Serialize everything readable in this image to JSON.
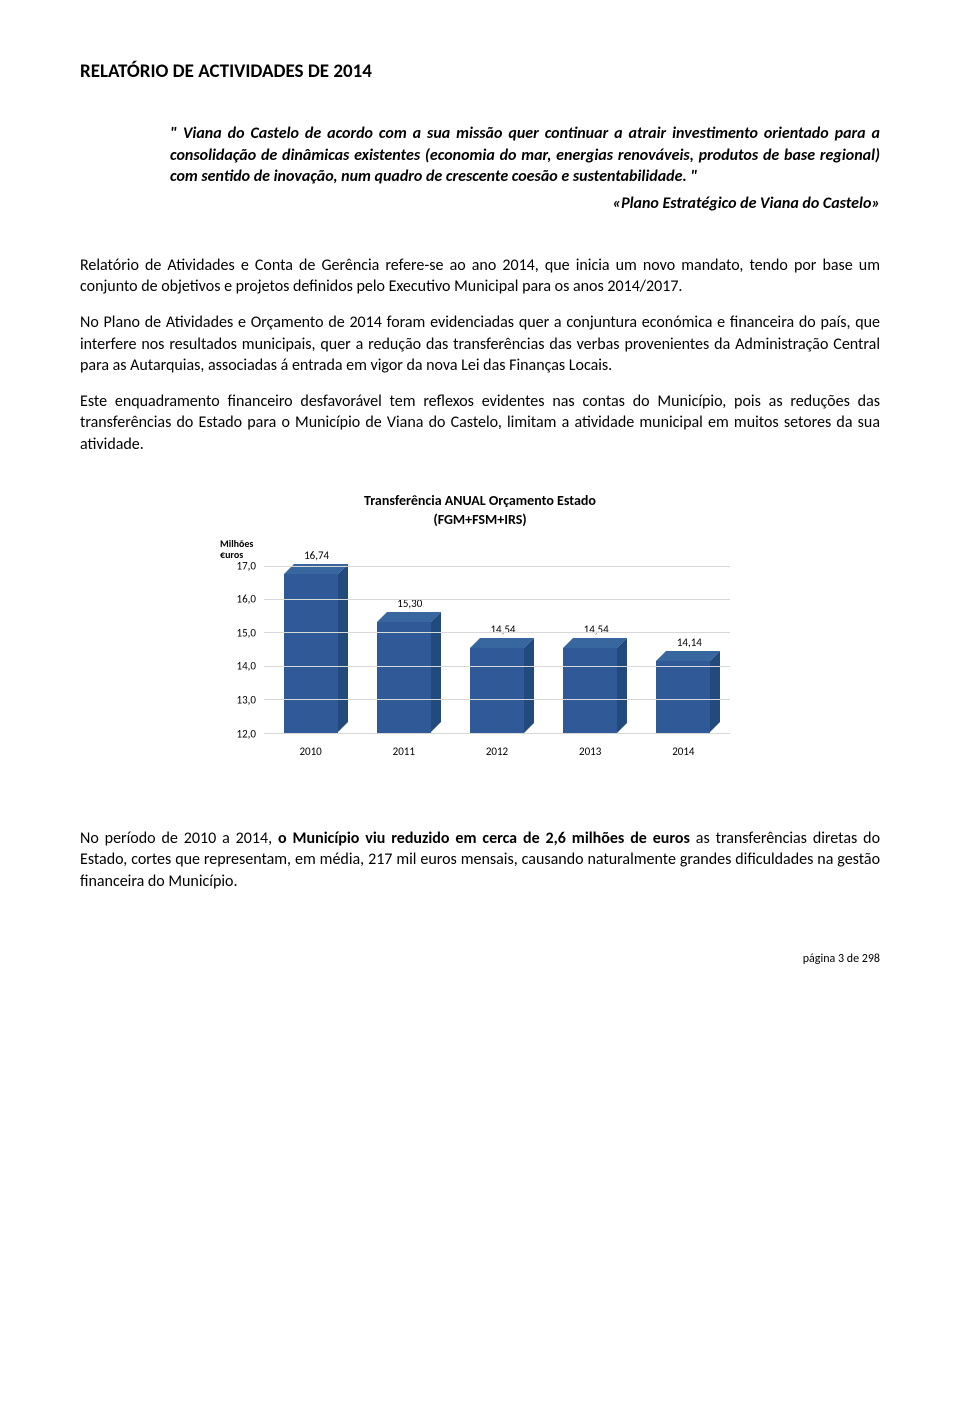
{
  "title": "RELATÓRIO DE ACTIVIDADES DE 2014",
  "quote": "\" Viana do Castelo de acordo com a sua missão quer continuar a atrair investimento orientado para a consolidação de dinâmicas existentes (economia do mar, energias renováveis, produtos de base regional) com sentido de inovação, num quadro de crescente coesão e sustentabilidade. \"",
  "quote_source": "«Plano Estratégico de Viana do Castelo»",
  "p1": "Relatório de Atividades e Conta de Gerência refere-se ao ano 2014, que inicia um novo mandato, tendo por base um conjunto de objetivos e projetos definidos pelo Executivo Municipal para os anos 2014/2017.",
  "p2": "No Plano de Atividades e Orçamento de 2014 foram evidenciadas quer a conjuntura económica e financeira do país, que interfere nos resultados municipais, quer a redução das transferências das verbas provenientes da Administração Central para as Autarquias, associadas á entrada em vigor da nova Lei das Finanças Locais.",
  "p3": "Este enquadramento financeiro desfavorável tem reflexos evidentes nas contas do Município, pois as reduções das transferências do Estado para o Município de Viana do Castelo, limitam a atividade municipal em muitos setores da sua atividade.",
  "p4_a": "No período de 2010 a 2014, ",
  "p4_b": "o Município viu reduzido em cerca de 2,6 milhões de euros",
  "p4_c": " as transferências diretas do Estado, cortes que representam, em média, 217 mil euros mensais, causando naturalmente grandes dificuldades na gestão financeira do Município.",
  "chart": {
    "type": "bar-3d",
    "title": "Transferência  ANUAL   Orçamento Estado",
    "subtitle": "(FGM+FSM+IRS)",
    "y_unit_line1": "Milhões",
    "y_unit_line2": "€uros",
    "categories": [
      "2010",
      "2011",
      "2012",
      "2013",
      "2014"
    ],
    "values": [
      16.74,
      15.3,
      14.54,
      14.54,
      14.14
    ],
    "value_labels": [
      "16,74",
      "15,30",
      "14,54",
      "14,54",
      "14,14"
    ],
    "ymin": 12.0,
    "ymax": 17.0,
    "ytick_step": 1.0,
    "ytick_labels": [
      "17,0",
      "16,0",
      "15,0",
      "14,0",
      "13,0",
      "12,0"
    ],
    "bar_front_color": "#2f5a97",
    "bar_top_color": "#38679f",
    "bar_side_color": "#234a7d",
    "grid_color": "#d8d8d8",
    "background_color": "#ffffff",
    "title_fontsize": 14,
    "label_fontsize": 11
  },
  "footer": "página 3 de 298"
}
